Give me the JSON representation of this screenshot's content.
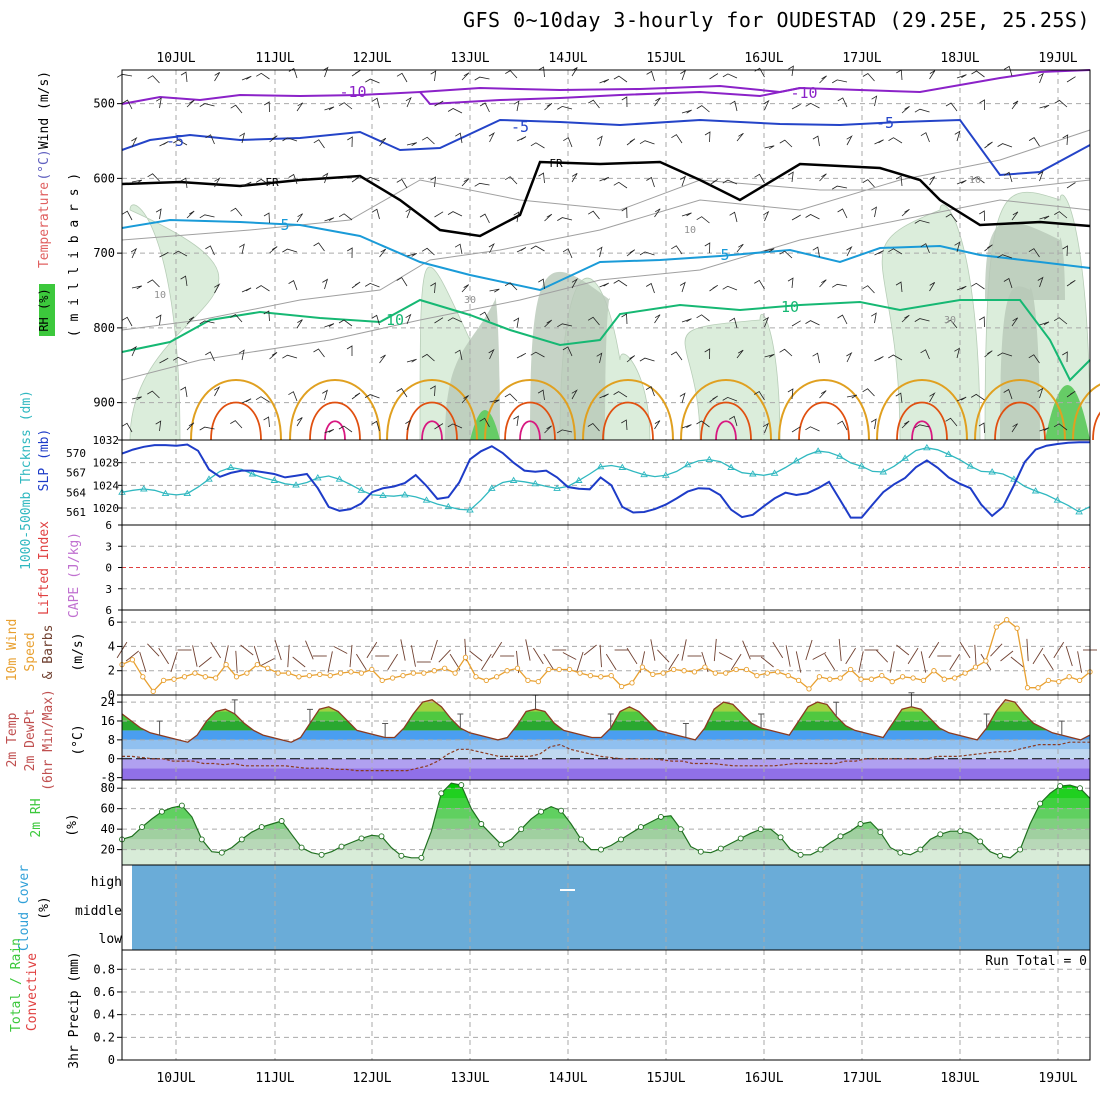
{
  "header": {
    "title": "GFS 0~10day 3-hourly for OUDESTAD (29.25E, 25.25S)"
  },
  "chart_data": {
    "type": "meteogram",
    "days": [
      "10JUL",
      "11JUL",
      "12JUL",
      "13JUL",
      "14JUL",
      "15JUL",
      "16JUL",
      "17JUL",
      "18JUL",
      "19JUL"
    ],
    "colors": {
      "purple": "#8b22c8",
      "blue": "#2444c8",
      "cyan": "#1a9bd8",
      "green": "#16b873",
      "orange": "#e0a020",
      "red": "#e05010",
      "magenta": "#d81880",
      "rh": "#3cc83c",
      "cloud": "#6aacd8",
      "gray": "#888888"
    },
    "panels": [
      {
        "id": "upper-air",
        "ylabel_parts": [
          {
            "text": "RH (%)",
            "color": "#3cc83c"
          },
          {
            "text": "Temperature",
            "color": "#e06060"
          },
          {
            "text": "(°C)",
            "color": "#6060c0"
          },
          {
            "text": "Wind (m/s)",
            "color": "#000000"
          }
        ],
        "ylabel2": "( m i l l i b a r s )",
        "yticks": [
          "500",
          "600",
          "700",
          "800",
          "900"
        ],
        "y_values": [
          500,
          600,
          700,
          800,
          900
        ],
        "ylim": [
          455,
          950
        ],
        "isotherm_labels": [
          "-10",
          "-10",
          "-5",
          "-5",
          "-5",
          "FR",
          "FR",
          "5",
          "5",
          "10",
          "10"
        ],
        "rh_labels": [
          "10",
          "10",
          "30",
          "30",
          "10"
        ]
      },
      {
        "id": "thickness-slp",
        "ylabel_left": "1000-500mb Thcknss (dm)",
        "ylabel_right": "SLP (mb)",
        "yticks_left": [
          "570",
          "567",
          "564",
          "561"
        ],
        "yticks_right": [
          "1032",
          "1028",
          "1024",
          "1020"
        ],
        "thickness_lim": [
          559,
          572
        ],
        "slp_lim": [
          1017,
          1032
        ],
        "thickness": [
          564,
          564.3,
          564.5,
          564.3,
          563.8,
          563.6,
          563.8,
          564.8,
          566,
          567.2,
          567.8,
          567.5,
          566.8,
          566.2,
          565.8,
          565.3,
          565.1,
          565.5,
          566.2,
          566.5,
          566,
          565.2,
          564.3,
          563.6,
          563.5,
          563.4,
          563.6,
          563.3,
          562.8,
          562.2,
          561.8,
          561.4,
          561.3,
          562.8,
          564.6,
          565.5,
          565.8,
          565.6,
          565.3,
          564.9,
          564.6,
          564.9,
          565.8,
          566.8,
          567.9,
          568.1,
          567.8,
          567.2,
          566.7,
          566.4,
          566.6,
          567.2,
          568.2,
          568.8,
          569,
          568.7,
          567.8,
          567,
          566.8,
          566.6,
          566.9,
          567.8,
          568.8,
          569.7,
          570.3,
          570.1,
          569.5,
          568.5,
          568,
          567.2,
          567.1,
          568,
          569.2,
          570.4,
          570.8,
          570.5,
          569.8,
          569,
          568,
          567.2,
          567.1,
          566.8,
          566,
          564.9,
          564.2,
          563.6,
          562.8,
          562,
          561,
          561.8
        ],
        "slp": [
          1029.6,
          1030.3,
          1030.8,
          1031.1,
          1031.1,
          1031,
          1031.2,
          1030.1,
          1026.8,
          1025.5,
          1026.2,
          1026.6,
          1026.6,
          1026.3,
          1026,
          1025.4,
          1025.7,
          1026,
          1023.5,
          1020.2,
          1019.5,
          1019.8,
          1020.8,
          1022.8,
          1023.5,
          1023.8,
          1024.4,
          1025.8,
          1023.9,
          1021.6,
          1021.9,
          1024.5,
          1028.6,
          1030,
          1030.9,
          1029.7,
          1028,
          1026.6,
          1026.4,
          1026.6,
          1025.4,
          1023.7,
          1023.4,
          1023.3,
          1025.4,
          1024,
          1020.2,
          1019.2,
          1019.3,
          1019.8,
          1020.6,
          1021.7,
          1022.9,
          1023.5,
          1023.4,
          1022.3,
          1019.7,
          1018.4,
          1018.8,
          1020.3,
          1021.7,
          1022.7,
          1022.3,
          1022.6,
          1023.5,
          1024.6,
          1021.5,
          1018.3,
          1018.3,
          1020.6,
          1022.8,
          1024.2,
          1025.3,
          1027.2,
          1028.4,
          1027.1,
          1025.4,
          1024.3,
          1023.5,
          1020.6,
          1018.6,
          1020.2,
          1024,
          1028.1,
          1030.3,
          1031,
          1031.3,
          1031.5,
          1031.6,
          1031.6
        ]
      },
      {
        "id": "cape-li",
        "ylabel_left": "Lifted Index",
        "ylabel_right": "CAPE (J/kg)",
        "yticks": [
          "6",
          "3",
          "0",
          "3",
          "6"
        ],
        "y_values": [
          6,
          3,
          0,
          -3,
          -6
        ],
        "ylim": [
          -6,
          6
        ]
      },
      {
        "id": "wind10m",
        "ylabel_parts": [
          "10m Wind",
          "Speed",
          "& Barbs"
        ],
        "ylabel_right": "(m/s)",
        "yticks": [
          "6",
          "4",
          "2",
          "0"
        ],
        "y_values": [
          6,
          4,
          2,
          0
        ],
        "ylim": [
          0,
          7
        ],
        "speed": [
          2.5,
          2.9,
          1.5,
          0.3,
          1.2,
          1.3,
          1.5,
          1.8,
          1.5,
          1.4,
          2.5,
          1.5,
          1.8,
          2.5,
          2.2,
          1.8,
          1.8,
          1.5,
          1.6,
          1.7,
          1.6,
          1.8,
          1.9,
          1.8,
          2.1,
          1.2,
          1.4,
          1.6,
          1.8,
          1.8,
          2,
          2.2,
          1.8,
          3.1,
          1.5,
          1.2,
          1.5,
          2,
          2.2,
          1.2,
          1.1,
          2.1,
          2.1,
          2.1,
          1.8,
          1.6,
          1.5,
          1.6,
          0.7,
          1,
          2.3,
          1.7,
          1.8,
          2.1,
          2,
          1.9,
          2.3,
          1.8,
          1.8,
          2.1,
          2.1,
          1.6,
          1.8,
          1.9,
          1.6,
          1.2,
          0.5,
          1.5,
          1.3,
          1.4,
          2.1,
          1.3,
          1.3,
          1.6,
          1.1,
          1.5,
          1.4,
          1.2,
          2,
          1.3,
          1.4,
          1.8,
          2.3,
          2.8,
          5.6,
          6.2,
          5.5,
          0.6,
          0.6,
          1.2,
          1.1,
          1.5,
          1.2,
          1.9
        ],
        "barbs": [
          [
            1,
            -1
          ],
          [
            2,
            -1
          ],
          [
            0.5,
            1
          ],
          [
            3,
            2
          ],
          [
            1,
            1
          ],
          [
            -1,
            2
          ],
          [
            2,
            0
          ],
          [
            1,
            3
          ],
          [
            -2,
            1
          ],
          [
            2,
            2
          ],
          [
            1,
            -3
          ],
          [
            0,
            3
          ],
          [
            2,
            1
          ],
          [
            -1,
            -2
          ],
          [
            3,
            -1
          ],
          [
            1,
            2
          ],
          [
            0,
            -3
          ],
          [
            -2,
            -1
          ],
          [
            2,
            3
          ],
          [
            1,
            0
          ],
          [
            -1,
            3
          ],
          [
            3,
            1
          ],
          [
            0,
            -2
          ],
          [
            2,
            2
          ],
          [
            1,
            -1
          ],
          [
            -3,
            0
          ],
          [
            2,
            -2
          ],
          [
            1,
            3
          ],
          [
            0,
            1
          ],
          [
            2,
            0
          ],
          [
            -1,
            2
          ],
          [
            3,
            -2
          ],
          [
            1,
            1
          ],
          [
            0,
            3
          ],
          [
            2,
            1
          ],
          [
            -2,
            2
          ],
          [
            1,
            -1
          ],
          [
            3,
            0
          ],
          [
            0,
            2
          ],
          [
            1,
            3
          ],
          [
            -1,
            -1
          ],
          [
            2,
            2
          ],
          [
            1,
            0
          ],
          [
            3,
            1
          ],
          [
            -1,
            2
          ],
          [
            2,
            -1
          ],
          [
            0,
            3
          ],
          [
            1,
            1
          ],
          [
            -2,
            0
          ],
          [
            2,
            2
          ],
          [
            1,
            -3
          ],
          [
            0,
            1
          ],
          [
            3,
            2
          ],
          [
            1,
            -1
          ],
          [
            -1,
            3
          ],
          [
            2,
            0
          ],
          [
            1,
            2
          ],
          [
            0,
            -2
          ],
          [
            3,
            1
          ],
          [
            -1,
            1
          ],
          [
            2,
            3
          ],
          [
            1,
            0
          ],
          [
            -2,
            -1
          ],
          [
            2,
            2
          ],
          [
            0,
            1
          ],
          [
            1,
            3
          ],
          [
            -1,
            2
          ],
          [
            3,
            -1
          ],
          [
            1,
            1
          ],
          [
            0,
            2
          ],
          [
            2,
            -2
          ],
          [
            -1,
            3
          ],
          [
            1,
            0
          ],
          [
            3,
            2
          ],
          [
            0,
            -1
          ],
          [
            2,
            1
          ],
          [
            -2,
            2
          ],
          [
            1,
            3
          ],
          [
            1,
            -1
          ],
          [
            3,
            0
          ],
          [
            -1,
            1
          ],
          [
            2,
            2
          ],
          [
            0,
            3
          ],
          [
            1,
            1
          ],
          [
            -3,
            2
          ],
          [
            4,
            -2
          ],
          [
            2,
            1
          ],
          [
            0,
            3
          ],
          [
            1,
            -1
          ],
          [
            2,
            2
          ],
          [
            -1,
            1
          ],
          [
            1,
            2
          ],
          [
            0,
            1
          ],
          [
            2,
            0
          ]
        ]
      },
      {
        "id": "temp2m",
        "ylabel_parts": [
          "2m Temp",
          "2m DewPt",
          "(6hr Min/Max)"
        ],
        "ylabel_right": "(°C)",
        "yticks": [
          "24",
          "16",
          "8",
          "0",
          "-8"
        ],
        "y_values": [
          24,
          16,
          8,
          0,
          -8
        ],
        "ylim": [
          -9,
          27
        ],
        "temp": [
          19,
          16,
          13,
          11,
          10,
          9,
          8,
          7,
          10,
          16,
          20,
          21,
          19,
          15,
          12,
          10,
          9,
          8,
          7,
          9,
          15,
          21,
          22,
          20,
          16,
          12,
          11,
          10,
          9,
          9,
          13,
          19,
          24,
          25,
          22,
          17,
          13,
          11,
          10,
          9,
          8,
          9,
          14,
          20,
          21,
          20,
          15,
          12,
          11,
          10,
          9,
          9,
          13,
          20,
          22,
          20,
          16,
          12,
          11,
          10,
          9,
          8,
          13,
          21,
          24,
          23,
          19,
          15,
          13,
          12,
          11,
          10,
          16,
          22,
          24,
          23,
          18,
          14,
          12,
          11,
          10,
          9,
          15,
          21,
          22,
          21,
          17,
          13,
          11,
          10,
          9,
          8,
          13,
          20,
          25,
          24,
          19,
          15,
          13,
          11,
          10,
          9,
          8,
          10
        ],
        "dewpoint": [
          1,
          1,
          0.5,
          0,
          0,
          -1,
          -1,
          -1,
          -2,
          -2,
          -2.5,
          -2,
          -3,
          -3,
          -3,
          -3,
          -3,
          -3.5,
          -4,
          -4,
          -4,
          -4.5,
          -4.5,
          -5,
          -5,
          -5,
          -5,
          -5,
          -5,
          -4,
          -3,
          -1,
          2,
          4,
          4,
          3,
          2,
          1,
          1,
          1,
          1,
          2,
          5,
          6,
          4,
          3,
          2,
          1,
          0.5,
          0,
          0,
          0,
          0,
          -0.5,
          -1,
          -1,
          -2,
          -2,
          -2,
          -2.5,
          -3,
          -3,
          -3,
          -3,
          -3,
          -2.5,
          -2,
          -2,
          -2,
          -2,
          -2,
          -1,
          -1,
          0,
          0,
          0,
          0,
          0,
          0,
          0,
          1,
          1,
          1,
          1.5,
          2,
          2.5,
          3,
          3,
          4,
          5,
          6,
          6,
          6,
          7,
          7,
          7
        ]
      },
      {
        "id": "rh2m",
        "ylabel_left": "2m RH",
        "ylabel_right": "(%)",
        "yticks": [
          "80",
          "60",
          "40",
          "20"
        ],
        "y_values": [
          80,
          60,
          40,
          20
        ],
        "ylim": [
          5,
          88
        ],
        "rh": [
          30,
          33,
          42,
          50,
          57,
          61,
          63,
          52,
          30,
          18,
          17,
          22,
          30,
          37,
          42,
          45,
          48,
          35,
          22,
          17,
          15,
          18,
          23,
          27,
          31,
          34,
          33,
          22,
          14,
          12,
          12,
          38,
          75,
          85,
          83,
          60,
          45,
          35,
          25,
          30,
          40,
          50,
          57,
          62,
          58,
          45,
          30,
          20,
          20,
          24,
          30,
          36,
          42,
          47,
          52,
          53,
          40,
          23,
          18,
          17,
          21,
          26,
          31,
          36,
          40,
          40,
          32,
          20,
          15,
          15,
          20,
          27,
          33,
          38,
          45,
          47,
          37,
          22,
          17,
          15,
          20,
          30,
          35,
          38,
          38,
          36,
          28,
          18,
          14,
          12,
          20,
          45,
          65,
          75,
          82,
          83,
          80,
          70
        ]
      },
      {
        "id": "cloud",
        "ylabel_parts": [
          "Cloud Cover",
          "(%)"
        ],
        "yticks": [
          "high",
          "middle",
          "low"
        ]
      },
      {
        "id": "precip",
        "ylabel_parts": [
          "Total / Rain",
          "Convective",
          "3hr Precip (mm)"
        ],
        "yticks": [
          "0.8",
          "0.6",
          "0.4",
          "0.2",
          "0"
        ],
        "y_values": [
          0.8,
          0.6,
          0.4,
          0.2,
          0
        ],
        "ylim": [
          0,
          0.97
        ],
        "run_total": "Run Total = 0"
      }
    ]
  }
}
